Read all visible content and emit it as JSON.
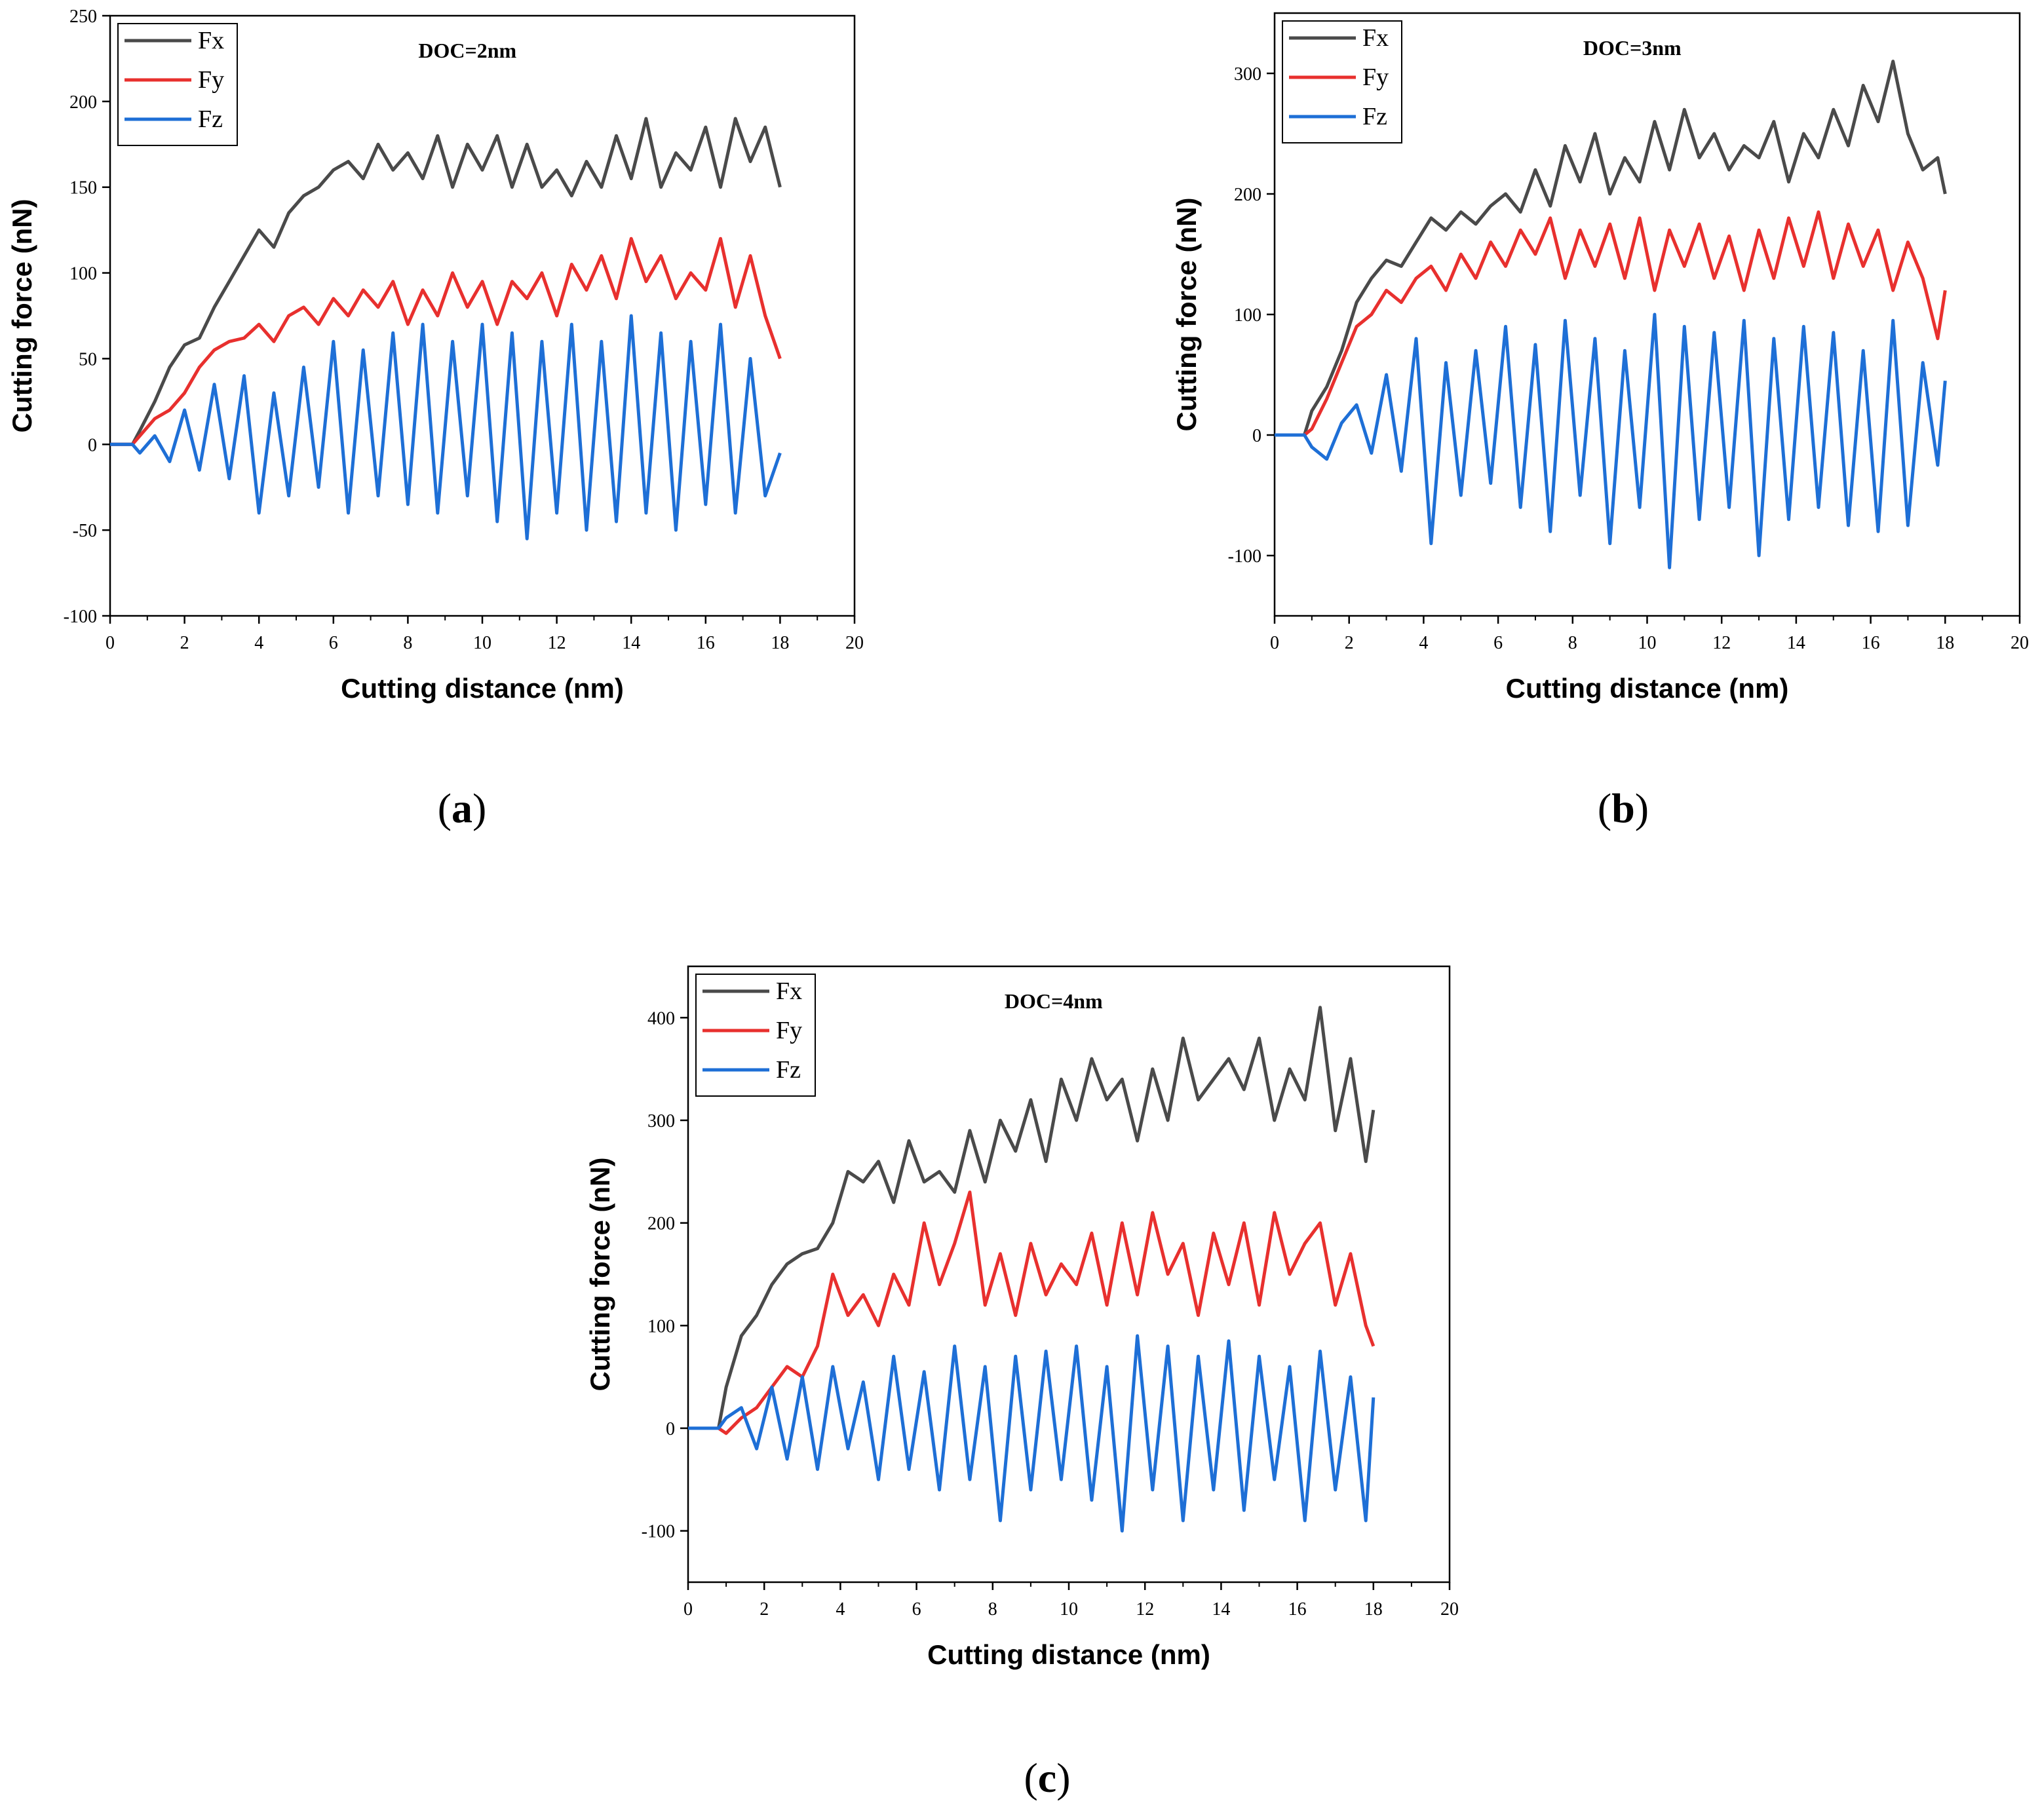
{
  "chart_data": [
    {
      "panel_label_open": "(",
      "panel_label_letter": "a",
      "panel_label_close": ")",
      "type": "line",
      "title": "DOC=2nm",
      "xlabel": "Cutting distance (nm)",
      "ylabel": "Cutting force (nN)",
      "xlim": [
        0,
        20
      ],
      "ylim": [
        -100,
        250
      ],
      "xticks": [
        "0",
        "2",
        "4",
        "6",
        "8",
        "10",
        "12",
        "14",
        "16",
        "18",
        "20"
      ],
      "yticks": [
        "-100",
        "-50",
        "0",
        "50",
        "100",
        "150",
        "200",
        "250"
      ],
      "legend_position": "top-left",
      "series": [
        {
          "name": "Fx",
          "color": "#4a4a4a",
          "x": [
            0,
            0.6,
            0.8,
            1.2,
            1.6,
            2,
            2.4,
            2.8,
            3.2,
            3.6,
            4,
            4.4,
            4.8,
            5.2,
            5.6,
            6,
            6.4,
            6.8,
            7.2,
            7.6,
            8,
            8.4,
            8.8,
            9.2,
            9.6,
            10,
            10.4,
            10.8,
            11.2,
            11.6,
            12,
            12.4,
            12.8,
            13.2,
            13.6,
            14,
            14.4,
            14.8,
            15.2,
            15.6,
            16,
            16.4,
            16.8,
            17.2,
            17.6,
            18
          ],
          "values": [
            0,
            0,
            8,
            25,
            45,
            58,
            62,
            80,
            95,
            110,
            125,
            115,
            135,
            145,
            150,
            160,
            165,
            155,
            175,
            160,
            170,
            155,
            180,
            150,
            175,
            160,
            180,
            150,
            175,
            150,
            160,
            145,
            165,
            150,
            180,
            155,
            190,
            150,
            170,
            160,
            185,
            150,
            190,
            165,
            185,
            150
          ]
        },
        {
          "name": "Fy",
          "color": "#e8302e",
          "x": [
            0,
            0.6,
            0.8,
            1.2,
            1.6,
            2,
            2.4,
            2.8,
            3.2,
            3.6,
            4,
            4.4,
            4.8,
            5.2,
            5.6,
            6,
            6.4,
            6.8,
            7.2,
            7.6,
            8,
            8.4,
            8.8,
            9.2,
            9.6,
            10,
            10.4,
            10.8,
            11.2,
            11.6,
            12,
            12.4,
            12.8,
            13.2,
            13.6,
            14,
            14.4,
            14.8,
            15.2,
            15.6,
            16,
            16.4,
            16.8,
            17.2,
            17.6,
            18
          ],
          "values": [
            0,
            0,
            5,
            15,
            20,
            30,
            45,
            55,
            60,
            62,
            70,
            60,
            75,
            80,
            70,
            85,
            75,
            90,
            80,
            95,
            70,
            90,
            75,
            100,
            80,
            95,
            70,
            95,
            85,
            100,
            75,
            105,
            90,
            110,
            85,
            120,
            95,
            110,
            85,
            100,
            90,
            120,
            80,
            110,
            75,
            50
          ]
        },
        {
          "name": "Fz",
          "color": "#1e6fd6",
          "x": [
            0,
            0.6,
            0.8,
            1.2,
            1.6,
            2,
            2.4,
            2.8,
            3.2,
            3.6,
            4,
            4.4,
            4.8,
            5.2,
            5.6,
            6,
            6.4,
            6.8,
            7.2,
            7.6,
            8,
            8.4,
            8.8,
            9.2,
            9.6,
            10,
            10.4,
            10.8,
            11.2,
            11.6,
            12,
            12.4,
            12.8,
            13.2,
            13.6,
            14,
            14.4,
            14.8,
            15.2,
            15.6,
            16,
            16.4,
            16.8,
            17.2,
            17.6,
            18
          ],
          "values": [
            0,
            0,
            -5,
            5,
            -10,
            20,
            -15,
            35,
            -20,
            40,
            -40,
            30,
            -30,
            45,
            -25,
            60,
            -40,
            55,
            -30,
            65,
            -35,
            70,
            -40,
            60,
            -30,
            70,
            -45,
            65,
            -55,
            60,
            -40,
            70,
            -50,
            60,
            -45,
            75,
            -40,
            65,
            -50,
            60,
            -35,
            70,
            -40,
            50,
            -30,
            -5
          ]
        }
      ]
    },
    {
      "panel_label_open": "(",
      "panel_label_letter": "b",
      "panel_label_close": ")",
      "type": "line",
      "title": "DOC=3nm",
      "xlabel": "Cutting distance (nm)",
      "ylabel": "Cutting force (nN)",
      "xlim": [
        0,
        20
      ],
      "ylim": [
        -150,
        350
      ],
      "xticks": [
        "0",
        "2",
        "4",
        "6",
        "8",
        "10",
        "12",
        "14",
        "16",
        "18",
        "20"
      ],
      "yticks": [
        "-100",
        "0",
        "100",
        "200",
        "300"
      ],
      "legend_position": "top-left",
      "series": [
        {
          "name": "Fx",
          "color": "#4a4a4a",
          "x": [
            0,
            0.8,
            1,
            1.4,
            1.8,
            2.2,
            2.6,
            3,
            3.4,
            3.8,
            4.2,
            4.6,
            5,
            5.4,
            5.8,
            6.2,
            6.6,
            7,
            7.4,
            7.8,
            8.2,
            8.6,
            9,
            9.4,
            9.8,
            10.2,
            10.6,
            11,
            11.4,
            11.8,
            12.2,
            12.6,
            13,
            13.4,
            13.8,
            14.2,
            14.6,
            15,
            15.4,
            15.8,
            16.2,
            16.6,
            17,
            17.4,
            17.8,
            18
          ],
          "values": [
            0,
            0,
            20,
            40,
            70,
            110,
            130,
            145,
            140,
            160,
            180,
            170,
            185,
            175,
            190,
            200,
            185,
            220,
            190,
            240,
            210,
            250,
            200,
            230,
            210,
            260,
            220,
            270,
            230,
            250,
            220,
            240,
            230,
            260,
            210,
            250,
            230,
            270,
            240,
            290,
            260,
            310,
            250,
            220,
            230,
            200
          ]
        },
        {
          "name": "Fy",
          "color": "#e8302e",
          "x": [
            0,
            0.8,
            1,
            1.4,
            1.8,
            2.2,
            2.6,
            3,
            3.4,
            3.8,
            4.2,
            4.6,
            5,
            5.4,
            5.8,
            6.2,
            6.6,
            7,
            7.4,
            7.8,
            8.2,
            8.6,
            9,
            9.4,
            9.8,
            10.2,
            10.6,
            11,
            11.4,
            11.8,
            12.2,
            12.6,
            13,
            13.4,
            13.8,
            14.2,
            14.6,
            15,
            15.4,
            15.8,
            16.2,
            16.6,
            17,
            17.4,
            17.8,
            18
          ],
          "values": [
            0,
            0,
            5,
            30,
            60,
            90,
            100,
            120,
            110,
            130,
            140,
            120,
            150,
            130,
            160,
            140,
            170,
            150,
            180,
            130,
            170,
            140,
            175,
            130,
            180,
            120,
            170,
            140,
            175,
            130,
            165,
            120,
            170,
            130,
            180,
            140,
            185,
            130,
            175,
            140,
            170,
            120,
            160,
            130,
            80,
            120
          ]
        },
        {
          "name": "Fz",
          "color": "#1e6fd6",
          "x": [
            0,
            0.8,
            1,
            1.4,
            1.8,
            2.2,
            2.6,
            3,
            3.4,
            3.8,
            4.2,
            4.6,
            5,
            5.4,
            5.8,
            6.2,
            6.6,
            7,
            7.4,
            7.8,
            8.2,
            8.6,
            9,
            9.4,
            9.8,
            10.2,
            10.6,
            11,
            11.4,
            11.8,
            12.2,
            12.6,
            13,
            13.4,
            13.8,
            14.2,
            14.6,
            15,
            15.4,
            15.8,
            16.2,
            16.6,
            17,
            17.4,
            17.8,
            18
          ],
          "values": [
            0,
            0,
            -10,
            -20,
            10,
            25,
            -15,
            50,
            -30,
            80,
            -90,
            60,
            -50,
            70,
            -40,
            90,
            -60,
            75,
            -80,
            95,
            -50,
            80,
            -90,
            70,
            -60,
            100,
            -110,
            90,
            -70,
            85,
            -60,
            95,
            -100,
            80,
            -70,
            90,
            -60,
            85,
            -75,
            70,
            -80,
            95,
            -75,
            60,
            -25,
            45
          ]
        }
      ]
    },
    {
      "panel_label_open": "(",
      "panel_label_letter": "c",
      "panel_label_close": ")",
      "type": "line",
      "title": "DOC=4nm",
      "xlabel": "Cutting distance (nm)",
      "ylabel": "Cutting force (nN)",
      "xlim": [
        0,
        20
      ],
      "ylim": [
        -150,
        450
      ],
      "xticks": [
        "0",
        "2",
        "4",
        "6",
        "8",
        "10",
        "12",
        "14",
        "16",
        "18",
        "20"
      ],
      "yticks": [
        "-100",
        "0",
        "100",
        "200",
        "300",
        "400"
      ],
      "legend_position": "top-left",
      "series": [
        {
          "name": "Fx",
          "color": "#4a4a4a",
          "x": [
            0,
            0.8,
            1,
            1.4,
            1.8,
            2.2,
            2.6,
            3,
            3.4,
            3.8,
            4.2,
            4.6,
            5,
            5.4,
            5.8,
            6.2,
            6.6,
            7,
            7.4,
            7.8,
            8.2,
            8.6,
            9,
            9.4,
            9.8,
            10.2,
            10.6,
            11,
            11.4,
            11.8,
            12.2,
            12.6,
            13,
            13.4,
            13.8,
            14.2,
            14.6,
            15,
            15.4,
            15.8,
            16.2,
            16.6,
            17,
            17.4,
            17.8,
            18
          ],
          "values": [
            0,
            0,
            40,
            90,
            110,
            140,
            160,
            170,
            175,
            200,
            250,
            240,
            260,
            220,
            280,
            240,
            250,
            230,
            290,
            240,
            300,
            270,
            320,
            260,
            340,
            300,
            360,
            320,
            340,
            280,
            350,
            300,
            380,
            320,
            340,
            360,
            330,
            380,
            300,
            350,
            320,
            410,
            290,
            360,
            260,
            310
          ]
        },
        {
          "name": "Fy",
          "color": "#e8302e",
          "x": [
            0,
            0.8,
            1,
            1.4,
            1.8,
            2.2,
            2.6,
            3,
            3.4,
            3.8,
            4.2,
            4.6,
            5,
            5.4,
            5.8,
            6.2,
            6.6,
            7,
            7.4,
            7.8,
            8.2,
            8.6,
            9,
            9.4,
            9.8,
            10.2,
            10.6,
            11,
            11.4,
            11.8,
            12.2,
            12.6,
            13,
            13.4,
            13.8,
            14.2,
            14.6,
            15,
            15.4,
            15.8,
            16.2,
            16.6,
            17,
            17.4,
            17.8,
            18
          ],
          "values": [
            0,
            0,
            -5,
            10,
            20,
            40,
            60,
            50,
            80,
            150,
            110,
            130,
            100,
            150,
            120,
            200,
            140,
            180,
            230,
            120,
            170,
            110,
            180,
            130,
            160,
            140,
            190,
            120,
            200,
            130,
            210,
            150,
            180,
            110,
            190,
            140,
            200,
            120,
            210,
            150,
            180,
            200,
            120,
            170,
            100,
            80
          ]
        },
        {
          "name": "Fz",
          "color": "#1e6fd6",
          "x": [
            0,
            0.8,
            1,
            1.4,
            1.8,
            2.2,
            2.6,
            3,
            3.4,
            3.8,
            4.2,
            4.6,
            5,
            5.4,
            5.8,
            6.2,
            6.6,
            7,
            7.4,
            7.8,
            8.2,
            8.6,
            9,
            9.4,
            9.8,
            10.2,
            10.6,
            11,
            11.4,
            11.8,
            12.2,
            12.6,
            13,
            13.4,
            13.8,
            14.2,
            14.6,
            15,
            15.4,
            15.8,
            16.2,
            16.6,
            17,
            17.4,
            17.8,
            18
          ],
          "values": [
            0,
            0,
            10,
            20,
            -20,
            40,
            -30,
            50,
            -40,
            60,
            -20,
            45,
            -50,
            70,
            -40,
            55,
            -60,
            80,
            -50,
            60,
            -90,
            70,
            -60,
            75,
            -50,
            80,
            -70,
            60,
            -100,
            90,
            -60,
            80,
            -90,
            70,
            -60,
            85,
            -80,
            70,
            -50,
            60,
            -90,
            75,
            -60,
            50,
            -90,
            30
          ]
        }
      ]
    }
  ]
}
